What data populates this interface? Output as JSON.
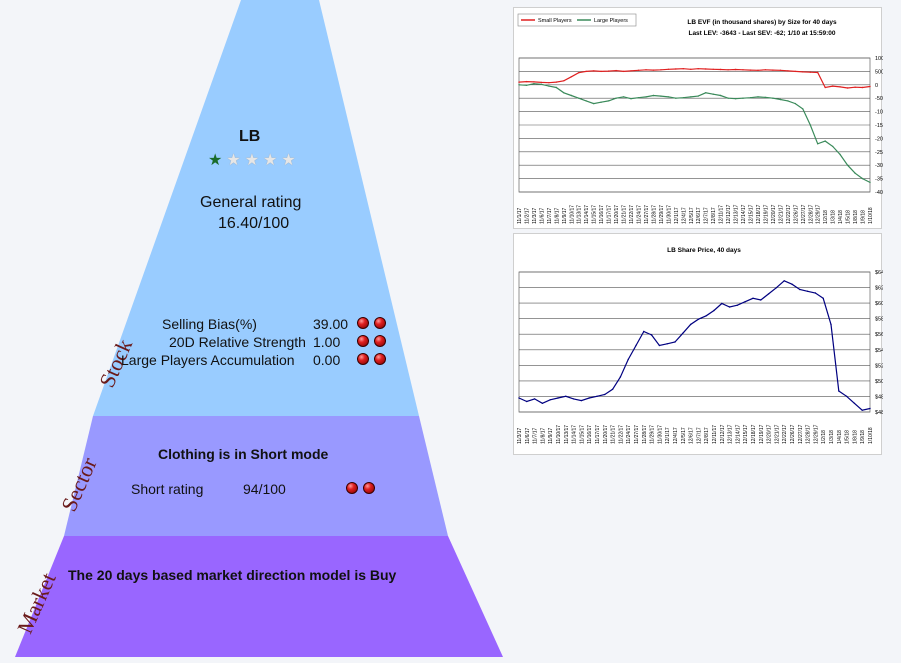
{
  "pyramid": {
    "labels": {
      "stock": "Stock",
      "sector": "Sector",
      "market": "Market"
    },
    "stock": {
      "ticker": "LB",
      "stars": {
        "filled": 1,
        "total": 5
      },
      "general_rating_label": "General rating",
      "general_rating_value": "16.40/100",
      "metrics": [
        {
          "label": "Selling Bias(%)",
          "value": "39.00",
          "balls": 2
        },
        {
          "label": "20D Relative Strength",
          "value": "1.00",
          "balls": 2
        },
        {
          "label": "Large Players Accumulation",
          "value": "0.00",
          "balls": 2
        }
      ]
    },
    "sector": {
      "title": "Clothing is in Short mode",
      "short_rating_label": "Short rating",
      "short_rating_value": "94/100",
      "balls": 2
    },
    "market": {
      "title": "The 20 days based market direction model is Buy"
    }
  },
  "colors": {
    "stock_tier": "#99ccff",
    "sector_tier": "#9999ff",
    "market_tier": "#9966ff",
    "small_players": "#e02020",
    "large_players": "#3a8a5a",
    "price_line": "#000080"
  },
  "chart_data": [
    {
      "type": "line",
      "title": "LB EVF (in thousand shares) by Size for 40 days",
      "subtitle": "Last LEV: -3643 - Last SEV: -62; 1/10 at 15:59:00",
      "legend": [
        "Small Players",
        "Large Players"
      ],
      "legend_position": "top-left",
      "ylim": [
        -4000,
        1000
      ],
      "yticks": [
        1000,
        500,
        0,
        -500,
        -1000,
        -1500,
        -2000,
        -2500,
        -3000,
        -3500,
        -4000
      ],
      "grid": true,
      "x": [
        "11/1/17",
        "11/2/17",
        "11/3/17",
        "11/6/17",
        "11/7/17",
        "11/8/17",
        "11/9/17",
        "11/10/17",
        "11/13/17",
        "11/14/17",
        "11/15/17",
        "11/16/17",
        "11/17/17",
        "11/20/17",
        "11/21/17",
        "11/22/17",
        "11/24/17",
        "11/27/17",
        "11/28/17",
        "11/29/17",
        "11/30/17",
        "12/1/17",
        "12/4/17",
        "12/5/17",
        "12/6/17",
        "12/7/17",
        "12/8/17",
        "12/11/17",
        "12/12/17",
        "12/13/17",
        "12/14/17",
        "12/15/17",
        "12/18/17",
        "12/19/17",
        "12/20/17",
        "12/21/17",
        "12/22/17",
        "12/26/17",
        "12/27/17",
        "12/28/17",
        "12/29/17",
        "1/2/18",
        "1/3/18",
        "1/4/18",
        "1/5/18",
        "1/8/18",
        "1/9/18",
        "1/10/18"
      ],
      "series": [
        {
          "name": "Small Players",
          "values": [
            100,
            120,
            110,
            90,
            80,
            100,
            150,
            300,
            450,
            500,
            520,
            500,
            510,
            530,
            500,
            520,
            540,
            560,
            550,
            560,
            580,
            590,
            600,
            580,
            600,
            590,
            580,
            570,
            560,
            570,
            560,
            550,
            540,
            560,
            550,
            540,
            520,
            500,
            480,
            470,
            460,
            -100,
            -50,
            -80,
            -120,
            -90,
            -100,
            -62
          ]
        },
        {
          "name": "Large Players",
          "values": [
            0,
            -20,
            40,
            20,
            -50,
            -100,
            -300,
            -400,
            -500,
            -600,
            -700,
            -650,
            -600,
            -500,
            -450,
            -520,
            -480,
            -450,
            -400,
            -420,
            -450,
            -500,
            -480,
            -450,
            -420,
            -300,
            -350,
            -400,
            -500,
            -520,
            -500,
            -480,
            -450,
            -470,
            -500,
            -550,
            -600,
            -700,
            -900,
            -1500,
            -2200,
            -2100,
            -2300,
            -2600,
            -3000,
            -3300,
            -3500,
            -3643
          ]
        }
      ]
    },
    {
      "type": "line",
      "title": "LB Share Price, 40 days",
      "ylim": [
        48,
        64
      ],
      "yticks": [
        "$64.0",
        "$62.0",
        "$60.0",
        "$58.0",
        "$56.0",
        "$54.0",
        "$52.0",
        "$50.0",
        "$48.0",
        "$48.0"
      ],
      "grid": true,
      "x": [
        "11/3/17",
        "11/6/17",
        "11/7/17",
        "11/8/17",
        "11/9/17",
        "11/10/17",
        "11/13/17",
        "11/14/17",
        "11/15/17",
        "11/16/17",
        "11/17/17",
        "11/20/17",
        "11/21/17",
        "11/22/17",
        "11/24/17",
        "11/27/17",
        "11/28/17",
        "11/29/17",
        "11/30/17",
        "12/1/17",
        "12/4/17",
        "12/5/17",
        "12/6/17",
        "12/7/17",
        "12/8/17",
        "12/11/17",
        "12/12/17",
        "12/13/17",
        "12/14/17",
        "12/15/17",
        "12/18/17",
        "12/19/17",
        "12/20/17",
        "12/21/17",
        "12/22/17",
        "12/26/17",
        "12/27/17",
        "12/28/17",
        "12/29/17",
        "1/2/18",
        "1/3/18",
        "1/4/18",
        "1/5/18",
        "1/8/18",
        "1/9/18",
        "1/10/18"
      ],
      "series": [
        {
          "name": "",
          "values": [
            49.6,
            49.2,
            49.5,
            49.0,
            49.4,
            49.6,
            49.8,
            49.5,
            49.3,
            49.6,
            49.8,
            50.0,
            50.6,
            52.0,
            54.0,
            55.6,
            57.2,
            56.8,
            55.6,
            55.8,
            56.0,
            57.0,
            58.0,
            58.6,
            59.0,
            59.6,
            60.4,
            60.0,
            60.2,
            60.6,
            61.0,
            60.8,
            61.5,
            62.2,
            63.0,
            62.6,
            62.0,
            61.8,
            61.6,
            61.0,
            58.0,
            50.4,
            49.8,
            49.0,
            48.2,
            48.4
          ]
        }
      ]
    }
  ]
}
